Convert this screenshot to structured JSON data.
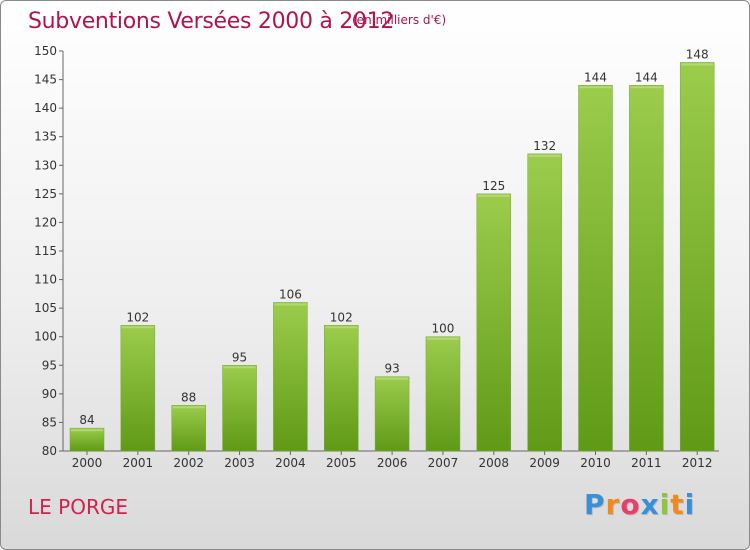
{
  "header": {
    "title": "Subventions Versées 2000 à 2012",
    "subtitle": "(en milliers d'€)"
  },
  "footer": {
    "city": "LE PORGE",
    "logo_letters": [
      "P",
      "r",
      "o",
      "x",
      "i",
      "t",
      "i"
    ],
    "logo_colors": [
      "#3b8fd6",
      "#f08a1c",
      "#e83e6c",
      "#3b8fd6",
      "#8cc63f",
      "#f08a1c",
      "#3b8fd6"
    ]
  },
  "chart_data": {
    "type": "bar",
    "categories": [
      "2000",
      "2001",
      "2002",
      "2003",
      "2004",
      "2005",
      "2006",
      "2007",
      "2008",
      "2009",
      "2010",
      "2011",
      "2012"
    ],
    "values": [
      84,
      102,
      88,
      95,
      106,
      102,
      93,
      100,
      125,
      132,
      144,
      144,
      148
    ],
    "data_labels": [
      "84",
      "102",
      "88",
      "95",
      "106",
      "102",
      "93",
      "100",
      "125",
      "132",
      "144",
      "144",
      "148"
    ],
    "yticks": [
      "80",
      "85",
      "90",
      "95",
      "100",
      "105",
      "110",
      "115",
      "120",
      "125",
      "130",
      "135",
      "140",
      "145",
      "150"
    ],
    "ylim": [
      80,
      150
    ],
    "grid": false,
    "bar_color_top": "#9ccc4c",
    "bar_color_bottom": "#5f9a16",
    "title": "Subventions Versées 2000 à 2012",
    "xlabel": "",
    "ylabel": ""
  }
}
